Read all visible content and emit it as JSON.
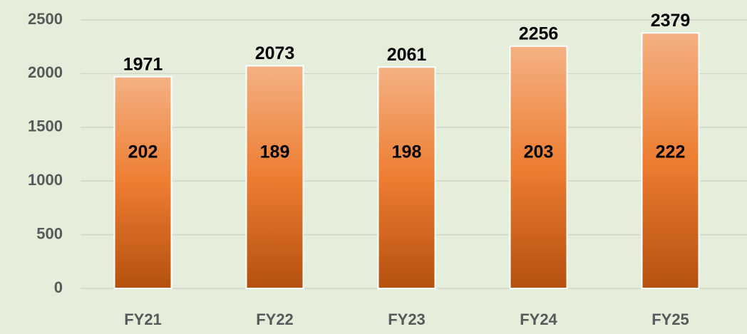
{
  "chart_data": {
    "type": "bar",
    "categories": [
      "FY21",
      "FY22",
      "FY23",
      "FY24",
      "FY25"
    ],
    "values": [
      1971,
      2073,
      2061,
      2256,
      2379
    ],
    "inner_labels": [
      202,
      189,
      198,
      203,
      222
    ],
    "color": "#ed7d31",
    "ylim": [
      0,
      2500
    ],
    "yticks": [
      0,
      500,
      1000,
      1500,
      2000,
      2500
    ],
    "grid": true
  }
}
